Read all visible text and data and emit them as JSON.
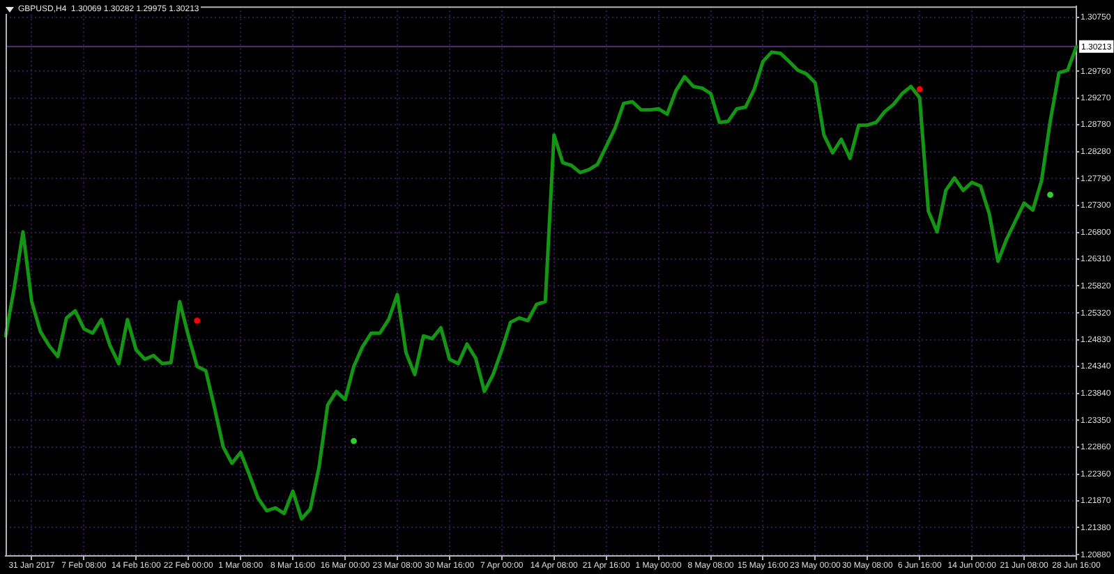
{
  "chart_data": {
    "type": "line",
    "title": "GBPUSD,H4  1.30069 1.30282 1.29975 1.30213",
    "categories": [
      null,
      null,
      null,
      "31 Jan 2017",
      null,
      null,
      null,
      null,
      null,
      "7 Feb 08:00",
      null,
      null,
      null,
      null,
      null,
      "14 Feb 16:00",
      null,
      null,
      null,
      null,
      null,
      "22 Feb 00:00",
      null,
      null,
      null,
      null,
      null,
      "1 Mar 08:00",
      null,
      null,
      null,
      null,
      null,
      "8 Mar 16:00",
      null,
      null,
      null,
      null,
      null,
      "16 Mar 00:00",
      null,
      null,
      null,
      null,
      null,
      "23 Mar 08:00",
      null,
      null,
      null,
      null,
      null,
      "30 Mar 16:00",
      null,
      null,
      null,
      null,
      null,
      "7 Apr 00:00",
      null,
      null,
      null,
      null,
      null,
      "14 Apr 08:00",
      null,
      null,
      null,
      null,
      null,
      "21 Apr 16:00",
      null,
      null,
      null,
      null,
      null,
      "1 May 00:00",
      null,
      null,
      null,
      null,
      null,
      "8 May 08:00",
      null,
      null,
      null,
      null,
      null,
      "15 May 16:00",
      null,
      null,
      null,
      null,
      null,
      "23 May 00:00",
      null,
      null,
      null,
      null,
      null,
      "30 May 08:00",
      null,
      null,
      null,
      null,
      null,
      "6 Jun 16:00",
      null,
      null,
      null,
      null,
      null,
      "14 Jun 00:00",
      null,
      null,
      null,
      null,
      null,
      "21 Jun 08:00",
      null,
      null,
      null,
      null,
      null,
      "28 Jun 16:00"
    ],
    "series": [
      {
        "color": "#149614",
        "values": [
          1.249,
          1.2579,
          1.2681,
          1.2553,
          1.2498,
          1.2472,
          1.2452,
          1.2523,
          1.2536,
          1.2503,
          1.2495,
          1.252,
          1.2472,
          1.2439,
          1.252,
          1.2464,
          1.2447,
          1.2454,
          1.2439,
          1.2441,
          1.2553,
          1.249,
          1.2434,
          1.2426,
          1.2358,
          1.2286,
          1.2256,
          1.2276,
          1.2235,
          1.2192,
          1.2169,
          1.2174,
          1.2164,
          1.2205,
          1.2154,
          1.2172,
          1.2248,
          1.2363,
          1.2388,
          1.2373,
          1.2434,
          1.247,
          1.2495,
          1.2495,
          1.252,
          1.2566,
          1.2459,
          1.2419,
          1.249,
          1.2485,
          1.2505,
          1.2447,
          1.2439,
          1.2475,
          1.2449,
          1.2388,
          1.2419,
          1.2464,
          1.2515,
          1.2523,
          1.2518,
          1.2548,
          1.2553,
          1.2859,
          1.2808,
          1.2803,
          1.279,
          1.2795,
          1.2805,
          1.2838,
          1.2871,
          1.2917,
          1.292,
          1.2905,
          1.2905,
          1.2907,
          1.2897,
          1.294,
          1.2966,
          1.2948,
          1.2945,
          1.2935,
          1.2882,
          1.2884,
          1.2907,
          1.291,
          1.2943,
          1.2994,
          1.3011,
          1.3009,
          1.2994,
          1.2978,
          1.2971,
          1.2955,
          1.2859,
          1.2826,
          1.2851,
          1.2816,
          1.2877,
          1.2877,
          1.2882,
          1.2902,
          1.2915,
          1.2935,
          1.2948,
          1.2927,
          1.2719,
          1.2681,
          1.2757,
          1.278,
          1.2757,
          1.2772,
          1.2765,
          1.2714,
          1.2627,
          1.2668,
          1.2701,
          1.2734,
          1.2721,
          1.2775,
          1.2884,
          1.2973,
          1.2978,
          1.3021
        ]
      },
      {
        "type": "scatter",
        "color": "#ff0000",
        "marker": "circle",
        "values": [
          null,
          null,
          null,
          null,
          null,
          null,
          null,
          null,
          null,
          null,
          null,
          null,
          null,
          null,
          null,
          null,
          null,
          null,
          null,
          null,
          null,
          null,
          1.2518,
          null,
          null,
          null,
          null,
          null,
          null,
          null,
          null,
          null,
          null,
          null,
          null,
          null,
          null,
          null,
          null,
          null,
          null,
          null,
          null,
          null,
          null,
          null,
          null,
          null,
          null,
          null,
          null,
          null,
          null,
          null,
          null,
          null,
          null,
          null,
          null,
          null,
          null,
          null,
          null,
          null,
          null,
          null,
          null,
          null,
          null,
          null,
          null,
          null,
          null,
          null,
          null,
          null,
          null,
          null,
          null,
          null,
          null,
          null,
          null,
          null,
          null,
          null,
          null,
          null,
          null,
          null,
          null,
          null,
          null,
          null,
          null,
          null,
          null,
          null,
          null,
          null,
          null,
          null,
          null,
          null,
          null,
          1.2943,
          null,
          null,
          null,
          null,
          null,
          null,
          null,
          null,
          null,
          null,
          null,
          null,
          null,
          null,
          null,
          null,
          null,
          null
        ]
      },
      {
        "type": "scatter",
        "color": "#32cd32",
        "marker": "circle",
        "values": [
          null,
          null,
          null,
          null,
          null,
          null,
          null,
          null,
          null,
          null,
          null,
          null,
          null,
          null,
          null,
          null,
          null,
          null,
          null,
          null,
          null,
          null,
          null,
          null,
          null,
          null,
          null,
          null,
          null,
          null,
          null,
          null,
          null,
          null,
          null,
          null,
          null,
          null,
          null,
          null,
          1.2297,
          null,
          null,
          null,
          null,
          null,
          null,
          null,
          null,
          null,
          null,
          null,
          null,
          null,
          null,
          null,
          null,
          null,
          null,
          null,
          null,
          null,
          null,
          null,
          null,
          null,
          null,
          null,
          null,
          null,
          null,
          null,
          null,
          null,
          null,
          null,
          null,
          null,
          null,
          null,
          null,
          null,
          null,
          null,
          null,
          null,
          null,
          null,
          null,
          null,
          null,
          null,
          null,
          null,
          null,
          null,
          null,
          null,
          null,
          null,
          null,
          null,
          null,
          null,
          null,
          null,
          null,
          null,
          null,
          null,
          null,
          null,
          null,
          null,
          null,
          null,
          null,
          null,
          null,
          null,
          1.2749,
          null,
          null,
          null
        ]
      }
    ],
    "ylim": [
      1.2086,
      1.3095
    ],
    "yticks": [
      {
        "value": 1.3075,
        "label": "1.30750"
      },
      {
        "value": 1.2976,
        "label": "1.29760"
      },
      {
        "value": 1.2927,
        "label": "1.29270"
      },
      {
        "value": 1.2878,
        "label": "1.28780"
      },
      {
        "value": 1.2828,
        "label": "1.28280"
      },
      {
        "value": 1.2779,
        "label": "1.27790"
      },
      {
        "value": 1.273,
        "label": "1.27300"
      },
      {
        "value": 1.268,
        "label": "1.26800"
      },
      {
        "value": 1.2631,
        "label": "1.26310"
      },
      {
        "value": 1.2582,
        "label": "1.25820"
      },
      {
        "value": 1.2532,
        "label": "1.25320"
      },
      {
        "value": 1.2483,
        "label": "1.24830"
      },
      {
        "value": 1.2434,
        "label": "1.24340"
      },
      {
        "value": 1.2384,
        "label": "1.23840"
      },
      {
        "value": 1.2335,
        "label": "1.23350"
      },
      {
        "value": 1.2286,
        "label": "1.22860"
      },
      {
        "value": 1.2236,
        "label": "1.22360"
      },
      {
        "value": 1.2187,
        "label": "1.21870"
      },
      {
        "value": 1.2138,
        "label": "1.21380"
      },
      {
        "value": 1.2088,
        "label": "1.20880"
      }
    ],
    "ref_lines": [
      {
        "axis": "y",
        "value": 1.30213,
        "label": "1.30213",
        "color": "#52307a"
      }
    ],
    "grid": true
  }
}
